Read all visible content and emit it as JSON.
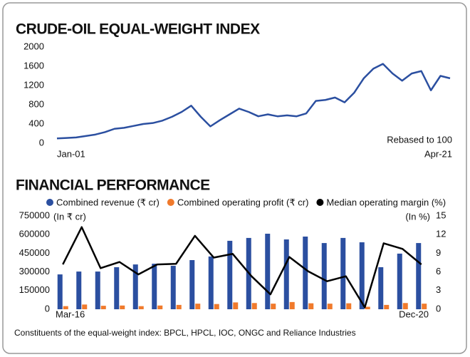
{
  "footnote": "Constituents of the equal-weight index: BPCL, HPCL, IOC, ONGC and Reliance Industries",
  "chart_data": [
    {
      "type": "line",
      "title": "CRUDE-OIL EQUAL-WEIGHT INDEX",
      "annotation": "Rebased to 100",
      "categories": [
        "Jan-01",
        null,
        null,
        null,
        null,
        null,
        null,
        null,
        null,
        null,
        null,
        null,
        null,
        null,
        null,
        null,
        null,
        null,
        null,
        null,
        null,
        null,
        null,
        null,
        null,
        null,
        null,
        null,
        null,
        null,
        null,
        null,
        null,
        null,
        null,
        null,
        null,
        null,
        null,
        null,
        null,
        "Apr-21"
      ],
      "values": [
        100,
        110,
        120,
        150,
        180,
        230,
        300,
        320,
        360,
        400,
        420,
        470,
        550,
        650,
        780,
        550,
        350,
        480,
        600,
        720,
        650,
        560,
        600,
        560,
        580,
        560,
        620,
        880,
        900,
        950,
        850,
        1050,
        1350,
        1550,
        1650,
        1450,
        1300,
        1450,
        1500,
        1100,
        1400,
        1350
      ],
      "color": "#2b4fa0",
      "ylim": [
        0,
        2000
      ],
      "yticks": [
        0,
        400,
        800,
        1200,
        1600,
        2000
      ],
      "grid": false
    },
    {
      "type": "bar",
      "title": "FINANCIAL PERFORMANCE",
      "y_label": "(In ₹ cr)",
      "y2_label": "(In %)",
      "legend": "top",
      "categories": [
        "Mar-16",
        null,
        null,
        null,
        null,
        null,
        null,
        null,
        null,
        null,
        null,
        null,
        null,
        null,
        null,
        null,
        null,
        null,
        null,
        "Dec-20"
      ],
      "series": [
        {
          "name": "Combined revenue (₹ cr)",
          "color": "#2b4fa0",
          "values": [
            280000,
            303000,
            303000,
            338000,
            360000,
            366000,
            349000,
            395000,
            424000,
            550000,
            573000,
            607000,
            561000,
            584000,
            532000,
            573000,
            538000,
            338000,
            447000,
            532000
          ]
        },
        {
          "name": "Combined operating profit (₹ cr)",
          "color": "#f07a2c",
          "values": [
            25000,
            38000,
            28000,
            30000,
            25000,
            30000,
            35000,
            45000,
            42000,
            55000,
            50000,
            45000,
            58000,
            48000,
            45000,
            48000,
            20000,
            35000,
            50000,
            45000
          ]
        },
        {
          "name": "Median operating margin (%)",
          "color": "#000000",
          "axis": "y2",
          "type": "line",
          "values": [
            7.2,
            13.2,
            6.6,
            7.6,
            5.6,
            7.2,
            7.3,
            11.8,
            8.3,
            8.9,
            5.3,
            2.4,
            8.4,
            6.1,
            4.5,
            5.3,
            0.3,
            10.6,
            9.7,
            7.2
          ]
        }
      ],
      "ylim": [
        0,
        750000
      ],
      "yticks": [
        0,
        150000,
        300000,
        450000,
        600000,
        750000
      ],
      "y2lim": [
        0,
        15
      ],
      "y2ticks": [
        0,
        3,
        6,
        9,
        12,
        15
      ],
      "grid": false
    }
  ]
}
